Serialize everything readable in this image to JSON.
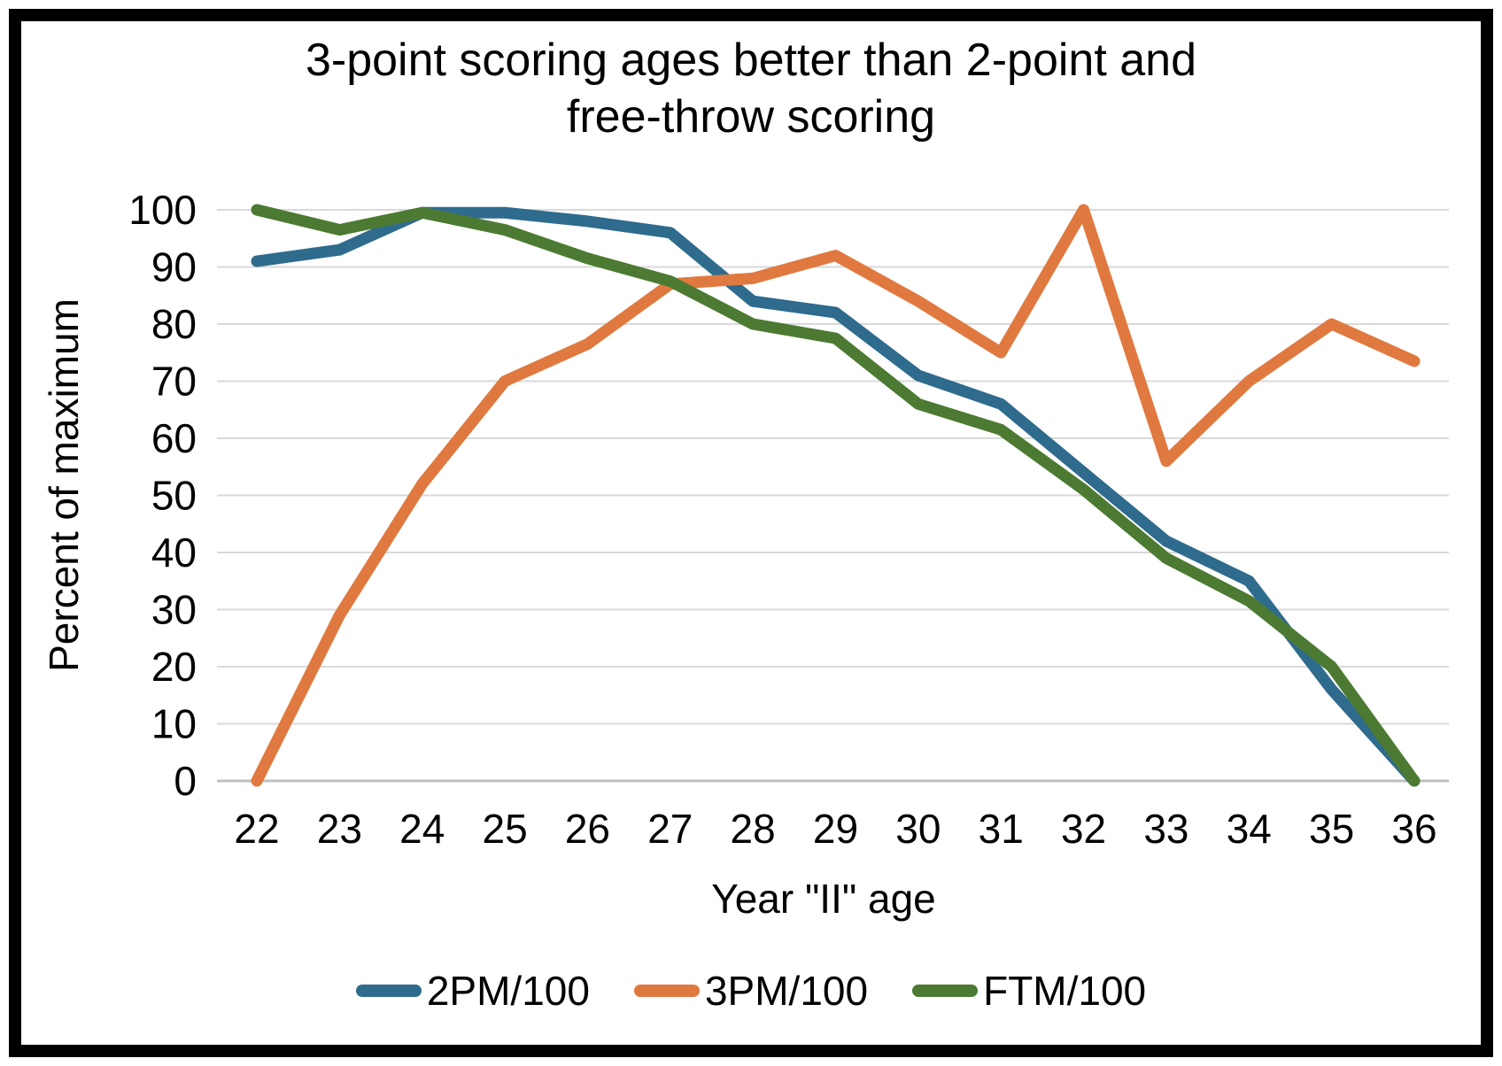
{
  "title": {
    "line1": "3-point scoring ages better than 2-point and",
    "line2": "free-throw scoring"
  },
  "y_axis": {
    "title": "Percent of maximum",
    "ticks": [
      0,
      10,
      20,
      30,
      40,
      50,
      60,
      70,
      80,
      90,
      100
    ],
    "min": 0,
    "max": 100
  },
  "x_axis": {
    "title": "Year \"II\" age",
    "ticks": [
      "22",
      "23",
      "24",
      "25",
      "26",
      "27",
      "28",
      "29",
      "30",
      "31",
      "32",
      "33",
      "34",
      "35",
      "36"
    ]
  },
  "legend": {
    "items": [
      {
        "label": "2PM/100",
        "color": "#2E6B8D"
      },
      {
        "label": "3PM/100",
        "color": "#E0793F"
      },
      {
        "label": "FTM/100",
        "color": "#4D7A32"
      }
    ]
  },
  "colors": {
    "gridline": "#D9D9D9",
    "axis_line": "#BFBFBF",
    "text": "#000000",
    "border": "#000000",
    "background": "#FFFFFF"
  },
  "chart_data": {
    "type": "line",
    "title": "3-point scoring ages better than 2-point and free-throw scoring",
    "xlabel": "Year \"II\" age",
    "ylabel": "Percent of maximum",
    "x": [
      22,
      23,
      24,
      25,
      26,
      27,
      28,
      29,
      30,
      31,
      32,
      33,
      34,
      35,
      36
    ],
    "series": [
      {
        "name": "2PM/100",
        "color": "#2E6B8D",
        "values": [
          91,
          93,
          99.5,
          99.5,
          98,
          96,
          84,
          82,
          71,
          66,
          54,
          42,
          35,
          16,
          0
        ]
      },
      {
        "name": "3PM/100",
        "color": "#E0793F",
        "values": [
          0,
          29,
          52,
          70,
          76.5,
          87,
          88,
          92,
          84,
          75,
          100,
          56,
          70,
          80,
          73.5
        ]
      },
      {
        "name": "FTM/100",
        "color": "#4D7A32",
        "values": [
          100,
          96.5,
          99.5,
          96.5,
          91.5,
          87.5,
          80,
          77.5,
          66,
          61.5,
          51,
          39,
          31.5,
          20,
          0
        ]
      }
    ],
    "ylim": [
      0,
      100
    ],
    "grid": true,
    "legend_position": "bottom"
  }
}
